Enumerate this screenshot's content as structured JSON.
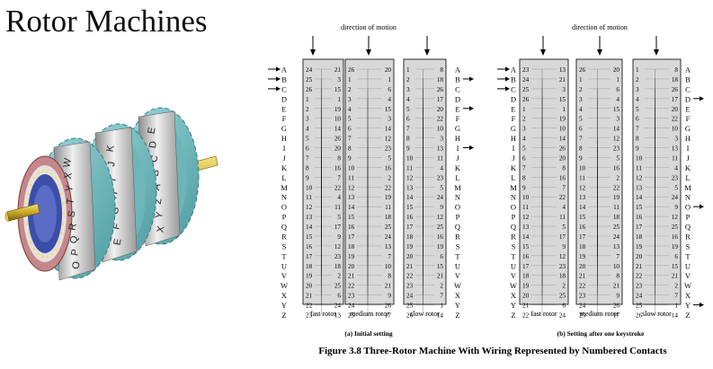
{
  "title": "Rotor Machines",
  "alphabet": [
    "A",
    "B",
    "C",
    "D",
    "E",
    "F",
    "G",
    "H",
    "I",
    "J",
    "K",
    "L",
    "M",
    "N",
    "O",
    "P",
    "Q",
    "R",
    "S",
    "T",
    "U",
    "V",
    "W",
    "X",
    "Y",
    "Z"
  ],
  "direction_label": "direction of motion",
  "rotor_labels": [
    "fast rotor",
    "medium rotor",
    "slow rotor"
  ],
  "caption_a": "(a) Initial setting",
  "caption_b": "(b) Setting after one keystroke",
  "figure_caption": "Figure 3.8   Three-Rotor Machine With Wiring Represented by Numbered Contacts",
  "photo": {
    "rotor1_letters": [
      "W",
      "X",
      "Y",
      "T",
      "S",
      "R",
      "Q",
      "P",
      "O"
    ],
    "rotor2_letters": [
      "K",
      "J",
      "I",
      "H",
      "G",
      "F",
      "E"
    ],
    "rotor3_letters": [
      "E",
      "D",
      "C",
      "B",
      "A",
      "Z",
      "Y",
      "X"
    ]
  },
  "diagrams": [
    {
      "rotors": [
        {
          "left": [
            24,
            25,
            26,
            1,
            2,
            3,
            4,
            5,
            6,
            7,
            8,
            9,
            10,
            11,
            12,
            13,
            14,
            15,
            16,
            17,
            18,
            19,
            20,
            21,
            22,
            23
          ],
          "right": [
            21,
            3,
            15,
            1,
            19,
            10,
            14,
            26,
            20,
            8,
            16,
            7,
            22,
            4,
            11,
            5,
            17,
            9,
            12,
            23,
            18,
            2,
            25,
            6,
            24,
            13
          ]
        },
        {
          "left": [
            26,
            1,
            2,
            3,
            4,
            5,
            6,
            7,
            8,
            9,
            10,
            11,
            12,
            13,
            14,
            15,
            16,
            17,
            18,
            19,
            20,
            21,
            22,
            23,
            24,
            25
          ],
          "right": [
            20,
            1,
            6,
            4,
            15,
            3,
            14,
            12,
            23,
            5,
            16,
            2,
            22,
            19,
            11,
            18,
            25,
            24,
            13,
            7,
            10,
            8,
            21,
            9,
            26,
            17
          ]
        },
        {
          "left": [
            1,
            2,
            3,
            4,
            5,
            6,
            7,
            8,
            9,
            10,
            11,
            12,
            13,
            14,
            15,
            16,
            17,
            18,
            19,
            20,
            21,
            22,
            23,
            24,
            25,
            26
          ],
          "right": [
            8,
            18,
            26,
            17,
            20,
            22,
            10,
            3,
            13,
            11,
            4,
            23,
            5,
            24,
            9,
            12,
            25,
            16,
            19,
            6,
            15,
            21,
            2,
            7,
            1,
            14
          ]
        }
      ],
      "arrows_left": [
        "A",
        "B",
        "C"
      ],
      "arrows_right": [
        "B",
        "E",
        "I"
      ]
    },
    {
      "rotors": [
        {
          "left": [
            23,
            24,
            25,
            26,
            1,
            2,
            3,
            4,
            5,
            6,
            7,
            8,
            9,
            10,
            11,
            12,
            13,
            14,
            15,
            16,
            17,
            18,
            19,
            20,
            21,
            22
          ],
          "right": [
            13,
            21,
            3,
            15,
            1,
            19,
            10,
            14,
            26,
            20,
            8,
            16,
            7,
            22,
            4,
            11,
            5,
            17,
            9,
            12,
            23,
            18,
            2,
            25,
            6,
            24
          ]
        },
        {
          "left": [
            26,
            1,
            2,
            3,
            4,
            5,
            6,
            7,
            8,
            9,
            10,
            11,
            12,
            13,
            14,
            15,
            16,
            17,
            18,
            19,
            20,
            21,
            22,
            23,
            24,
            25
          ],
          "right": [
            20,
            1,
            6,
            4,
            15,
            3,
            14,
            12,
            23,
            5,
            16,
            2,
            22,
            19,
            11,
            18,
            25,
            24,
            13,
            7,
            10,
            8,
            21,
            9,
            26,
            17
          ]
        },
        {
          "left": [
            1,
            2,
            3,
            4,
            5,
            6,
            7,
            8,
            9,
            10,
            11,
            12,
            13,
            14,
            15,
            16,
            17,
            18,
            19,
            20,
            21,
            22,
            23,
            24,
            25,
            26
          ],
          "right": [
            8,
            18,
            26,
            17,
            20,
            22,
            10,
            3,
            13,
            11,
            4,
            23,
            5,
            24,
            9,
            12,
            25,
            16,
            19,
            6,
            15,
            21,
            2,
            7,
            1,
            14
          ]
        }
      ],
      "arrows_left": [
        "A",
        "B",
        "C"
      ],
      "arrows_right": [
        "D",
        "O",
        "Y"
      ]
    }
  ]
}
